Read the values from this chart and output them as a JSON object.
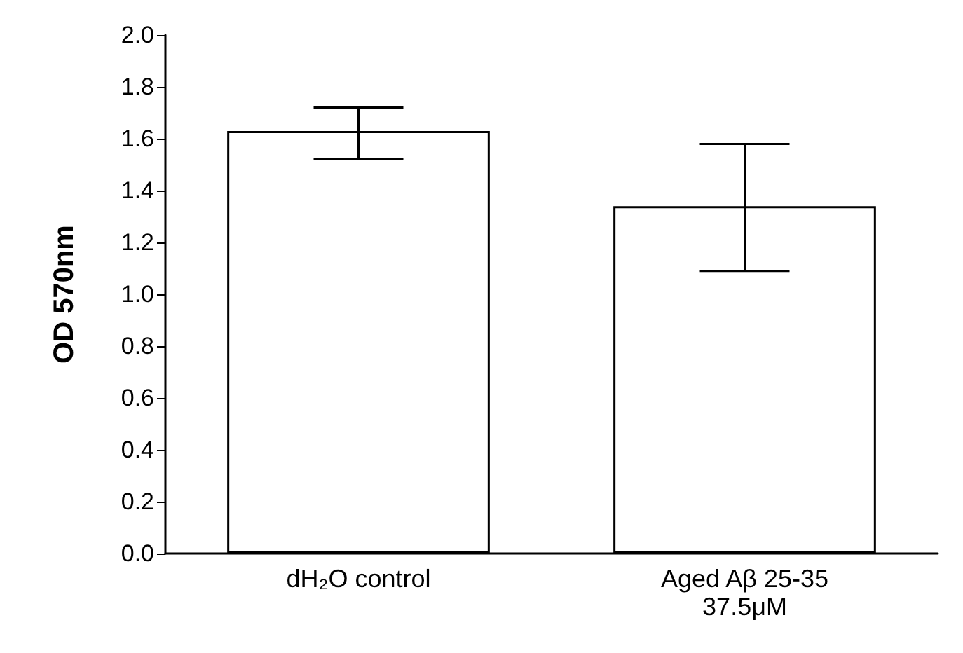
{
  "chart_data": {
    "type": "bar",
    "ylabel": "OD 570nm",
    "categories": [
      "dH₂O control",
      "Aged Aβ 25-35\n37.5μM"
    ],
    "values": [
      1.63,
      1.34
    ],
    "color": "#ffffff",
    "errors": [
      [
        1.52,
        1.72
      ],
      [
        1.09,
        1.58
      ]
    ],
    "ylim": [
      0,
      2.0
    ],
    "yticks": [
      {
        "value": 0,
        "label": "0.0"
      },
      0.2,
      0.4,
      0.6,
      0.8,
      {
        "value": 1,
        "label": "1.0"
      },
      1.2,
      1.4,
      1.6,
      1.8,
      {
        "value": 2,
        "label": "2.0"
      }
    ],
    "grid": false
  }
}
